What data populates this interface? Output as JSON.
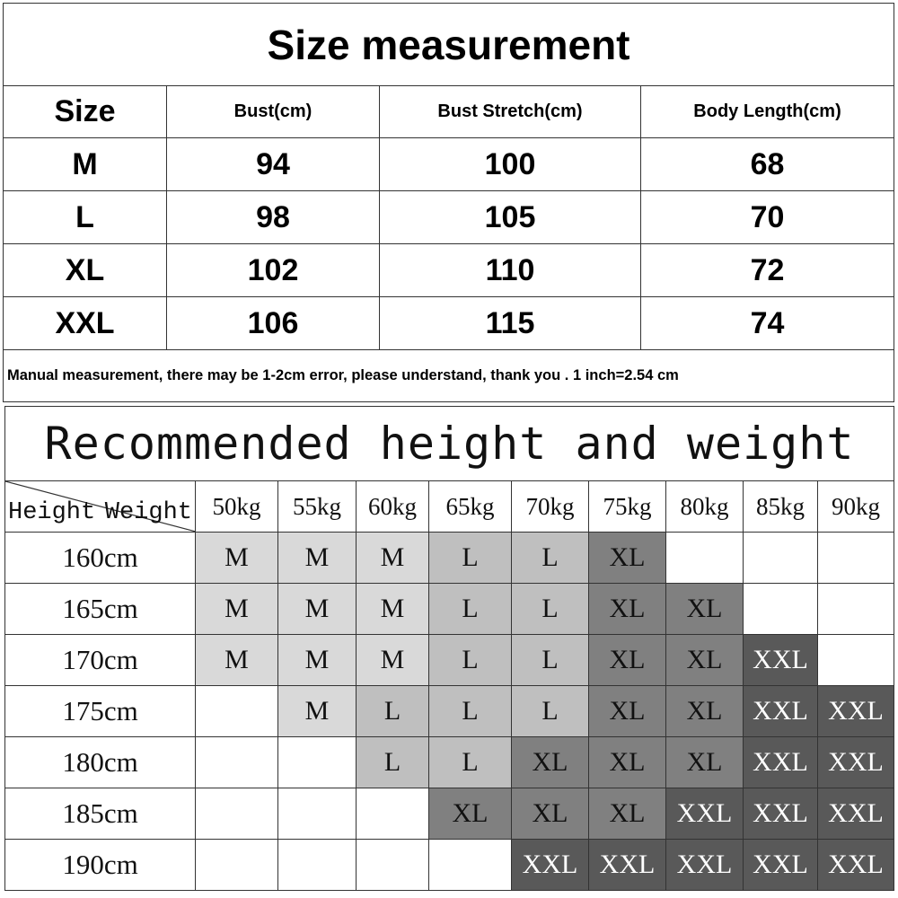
{
  "size_table": {
    "title": "Size measurement",
    "headers": [
      "Size",
      "Bust(cm)",
      "Bust Stretch(cm)",
      "Body Length(cm)"
    ],
    "rows": [
      [
        "M",
        "94",
        "100",
        "68"
      ],
      [
        "L",
        "98",
        "105",
        "70"
      ],
      [
        "XL",
        "102",
        "110",
        "72"
      ],
      [
        "XXL",
        "106",
        "115",
        "74"
      ]
    ],
    "note": "Manual measurement, there may be 1-2cm error, please understand, thank you .   1 inch=2.54 cm"
  },
  "recommend_table": {
    "title": "Recommended height and weight",
    "corner_height": "Height",
    "corner_weight": "Weight",
    "weights": [
      "50kg",
      "55kg",
      "60kg",
      "65kg",
      "70kg",
      "75kg",
      "80kg",
      "85kg",
      "90kg"
    ],
    "rows": [
      {
        "height": "160cm",
        "sizes": [
          "M",
          "M",
          "M",
          "L",
          "L",
          "XL",
          "",
          "",
          ""
        ]
      },
      {
        "height": "165cm",
        "sizes": [
          "M",
          "M",
          "M",
          "L",
          "L",
          "XL",
          "XL",
          "",
          ""
        ]
      },
      {
        "height": "170cm",
        "sizes": [
          "M",
          "M",
          "M",
          "L",
          "L",
          "XL",
          "XL",
          "XXL",
          ""
        ]
      },
      {
        "height": "175cm",
        "sizes": [
          "",
          "M",
          "L",
          "L",
          "L",
          "XL",
          "XL",
          "XXL",
          "XXL"
        ]
      },
      {
        "height": "180cm",
        "sizes": [
          "",
          "",
          "L",
          "L",
          "XL",
          "XL",
          "XL",
          "XXL",
          "XXL"
        ]
      },
      {
        "height": "185cm",
        "sizes": [
          "",
          "",
          "",
          "XL",
          "XL",
          "XL",
          "XXL",
          "XXL",
          "XXL"
        ]
      },
      {
        "height": "190cm",
        "sizes": [
          "",
          "",
          "",
          "",
          "XXL",
          "XXL",
          "XXL",
          "XXL",
          "XXL"
        ]
      }
    ],
    "size_colors": {
      "M": "#d9d9d9",
      "L": "#bfbfbf",
      "XL": "#808080",
      "XXL": "#595959"
    }
  }
}
